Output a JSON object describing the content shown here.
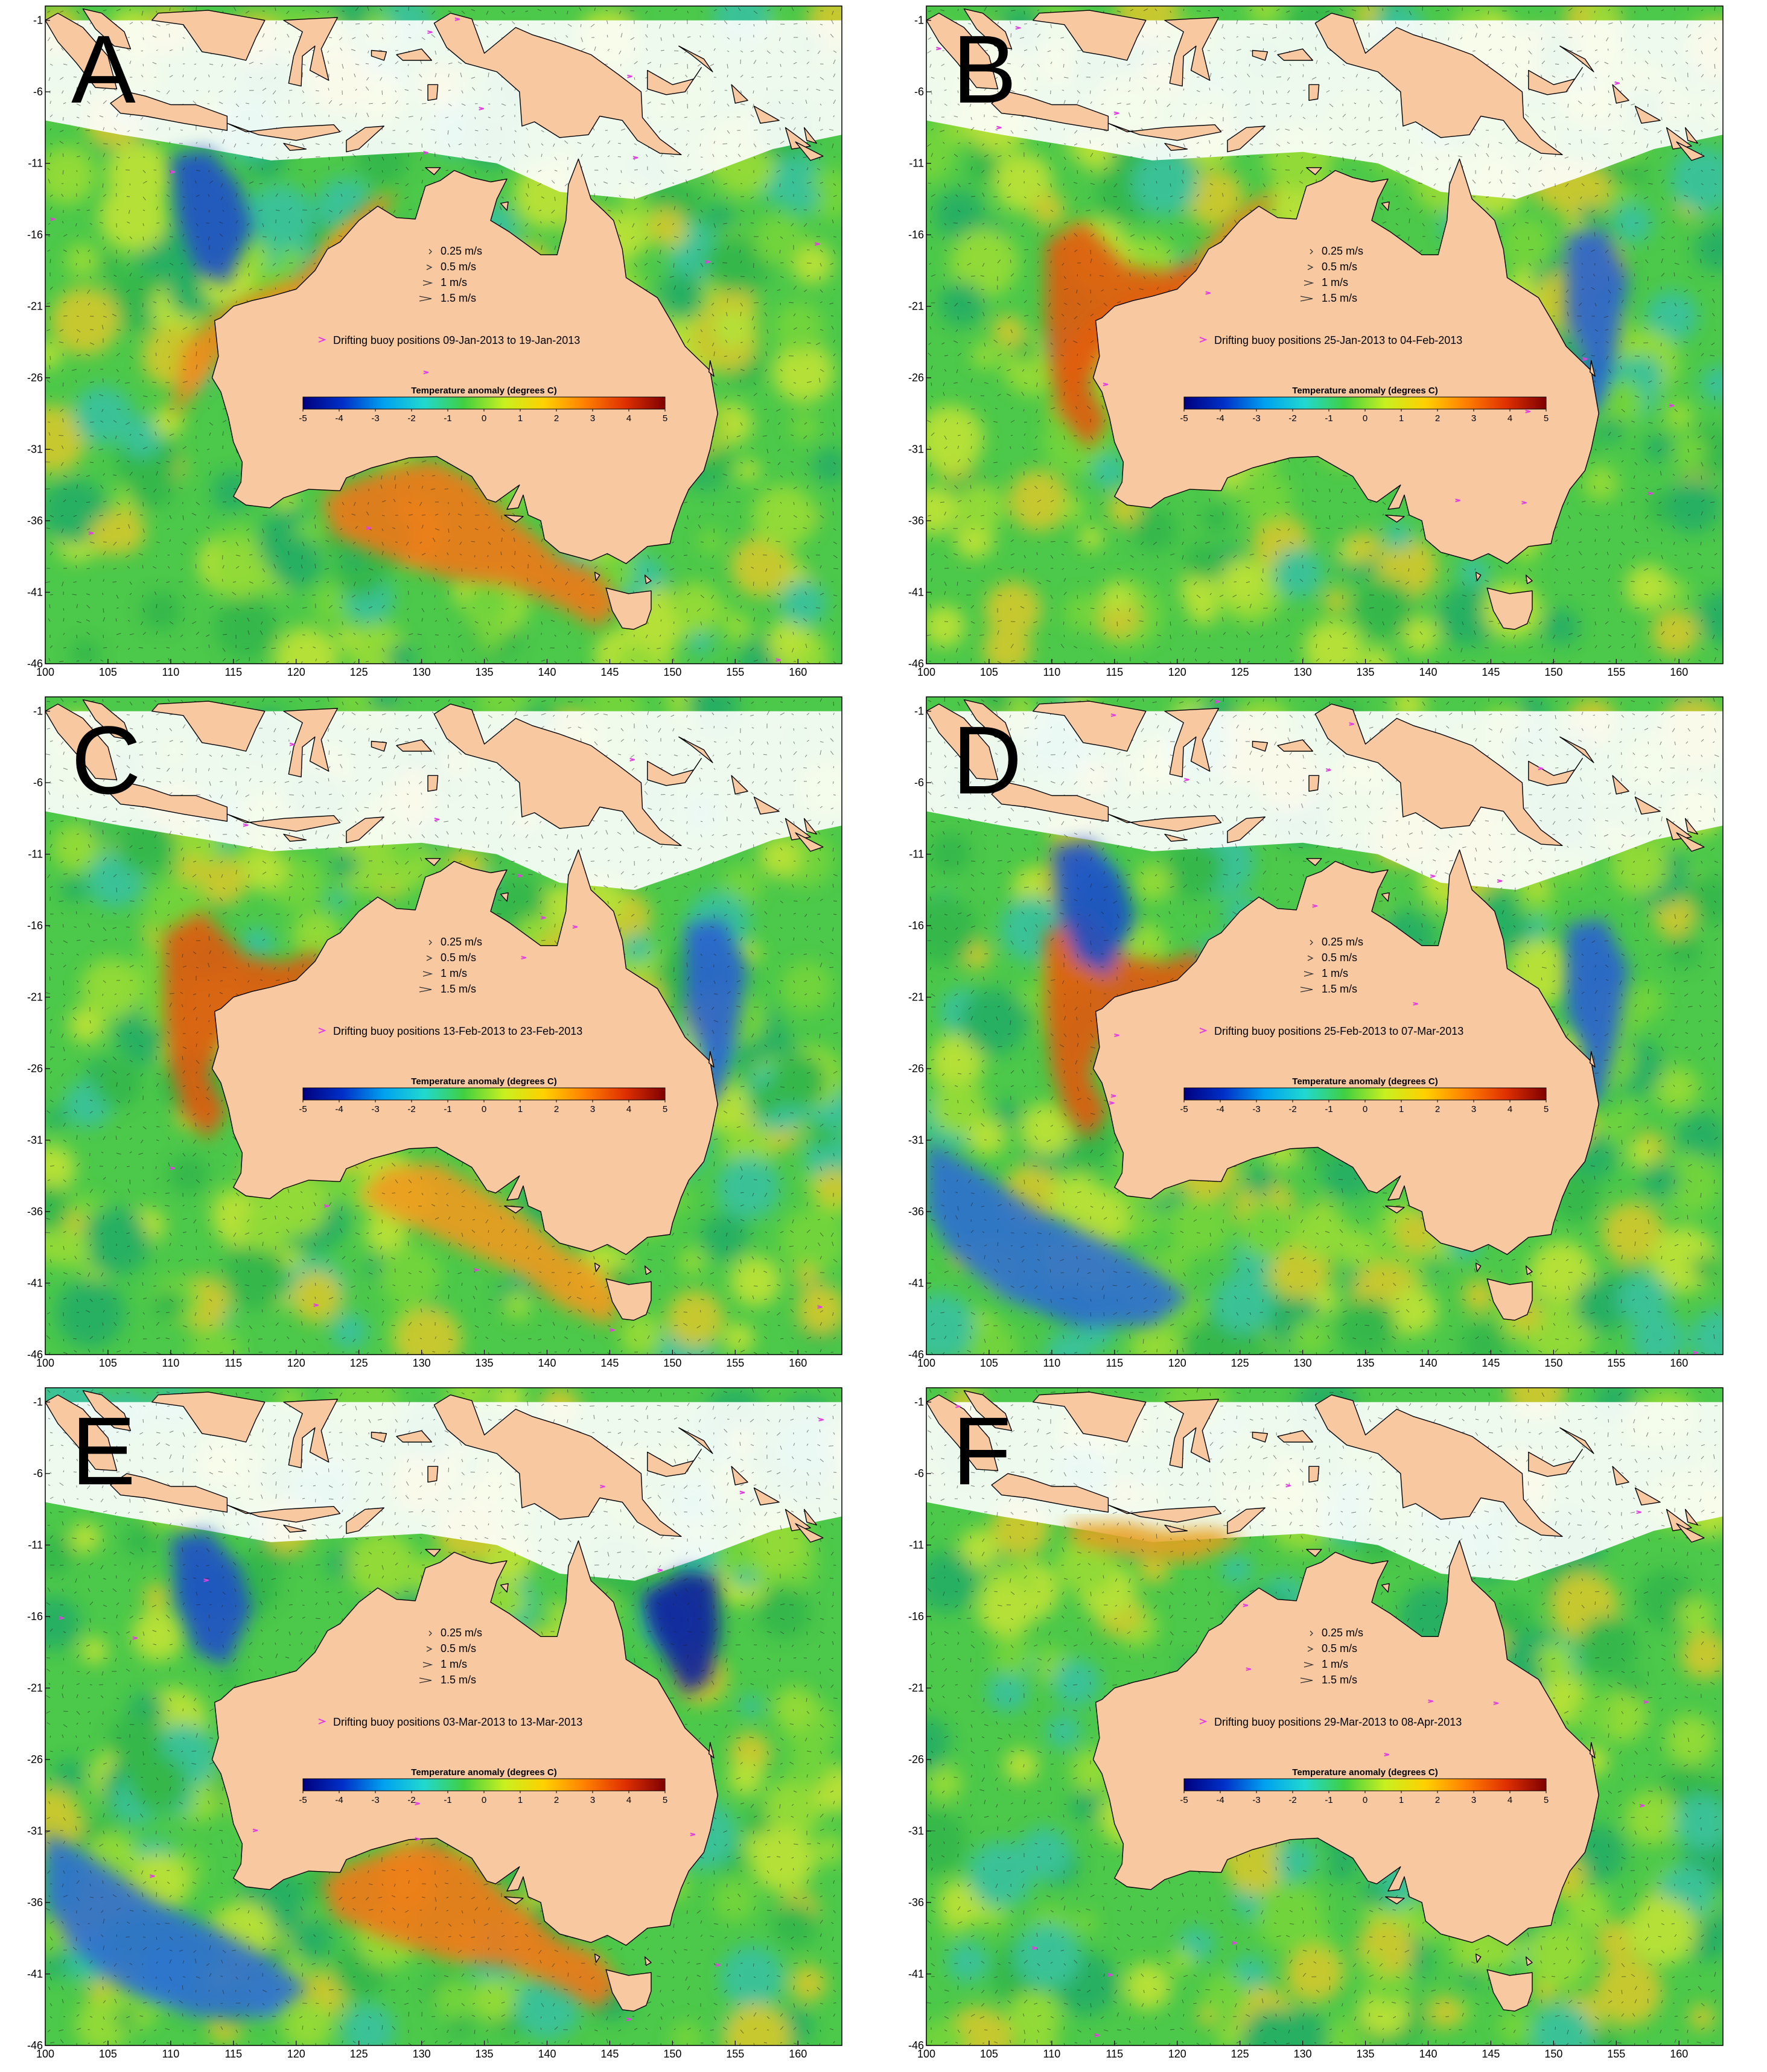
{
  "colors": {
    "land": "#F8C8A0",
    "ocean_base": "#4CC84A",
    "buoy_marker": "#E040E0",
    "colorbar_stops": [
      "#00007F",
      "#0030C8",
      "#00A0F0",
      "#20D8D0",
      "#40D040",
      "#C8F020",
      "#FFD000",
      "#FF8000",
      "#E03000",
      "#800000"
    ]
  },
  "x_ticks": [
    "100",
    "105",
    "110",
    "115",
    "120",
    "125",
    "130",
    "135",
    "140",
    "145",
    "150",
    "155",
    "160"
  ],
  "y_ticks": [
    "-1",
    "-6",
    "-11",
    "-16",
    "-21",
    "-26",
    "-31",
    "-36",
    "-41",
    "-46"
  ],
  "legend": {
    "speeds": [
      "0.25 m/s",
      "0.5 m/s",
      "1 m/s",
      "1.5 m/s"
    ],
    "colorbar_title": "Temperature anomaly (degrees C)",
    "colorbar_ticks": [
      "-5",
      "-4",
      "-3",
      "-2",
      "-1",
      "0",
      "1",
      "2",
      "3",
      "4",
      "5"
    ]
  },
  "panels": [
    {
      "letter": "A",
      "buoy_label": "Drifting buoy positions 09-Jan-2013 to 19-Jan-2013",
      "warm_regions": [
        "south-bight",
        "northwest-shelf"
      ],
      "cool_regions": [
        "north-west-patch"
      ]
    },
    {
      "letter": "B",
      "buoy_label": "Drifting buoy positions 25-Jan-2013 to 04-Feb-2013",
      "warm_regions": [
        "northwest-shelf",
        "west-coast"
      ],
      "cool_regions": [
        "east-coast"
      ]
    },
    {
      "letter": "C",
      "buoy_label": "Drifting buoy positions 13-Feb-2013 to 23-Feb-2013",
      "warm_regions": [
        "west-coast",
        "south-coast"
      ],
      "cool_regions": [
        "east-coast"
      ]
    },
    {
      "letter": "D",
      "buoy_label": "Drifting buoy positions 25-Feb-2013 to 07-Mar-2013",
      "warm_regions": [
        "west-coast"
      ],
      "cool_regions": [
        "north-west-patch",
        "east-coast",
        "south-west"
      ]
    },
    {
      "letter": "E",
      "buoy_label": "Drifting buoy positions 03-Mar-2013 to 13-Mar-2013",
      "warm_regions": [
        "south-bight"
      ],
      "cool_regions": [
        "north-west-patch",
        "coral-sea",
        "south-west"
      ]
    },
    {
      "letter": "F",
      "buoy_label": "Drifting buoy positions 29-Mar-2013 to 08-Apr-2013",
      "warm_regions": [
        "timor-sea"
      ],
      "cool_regions": []
    }
  ]
}
